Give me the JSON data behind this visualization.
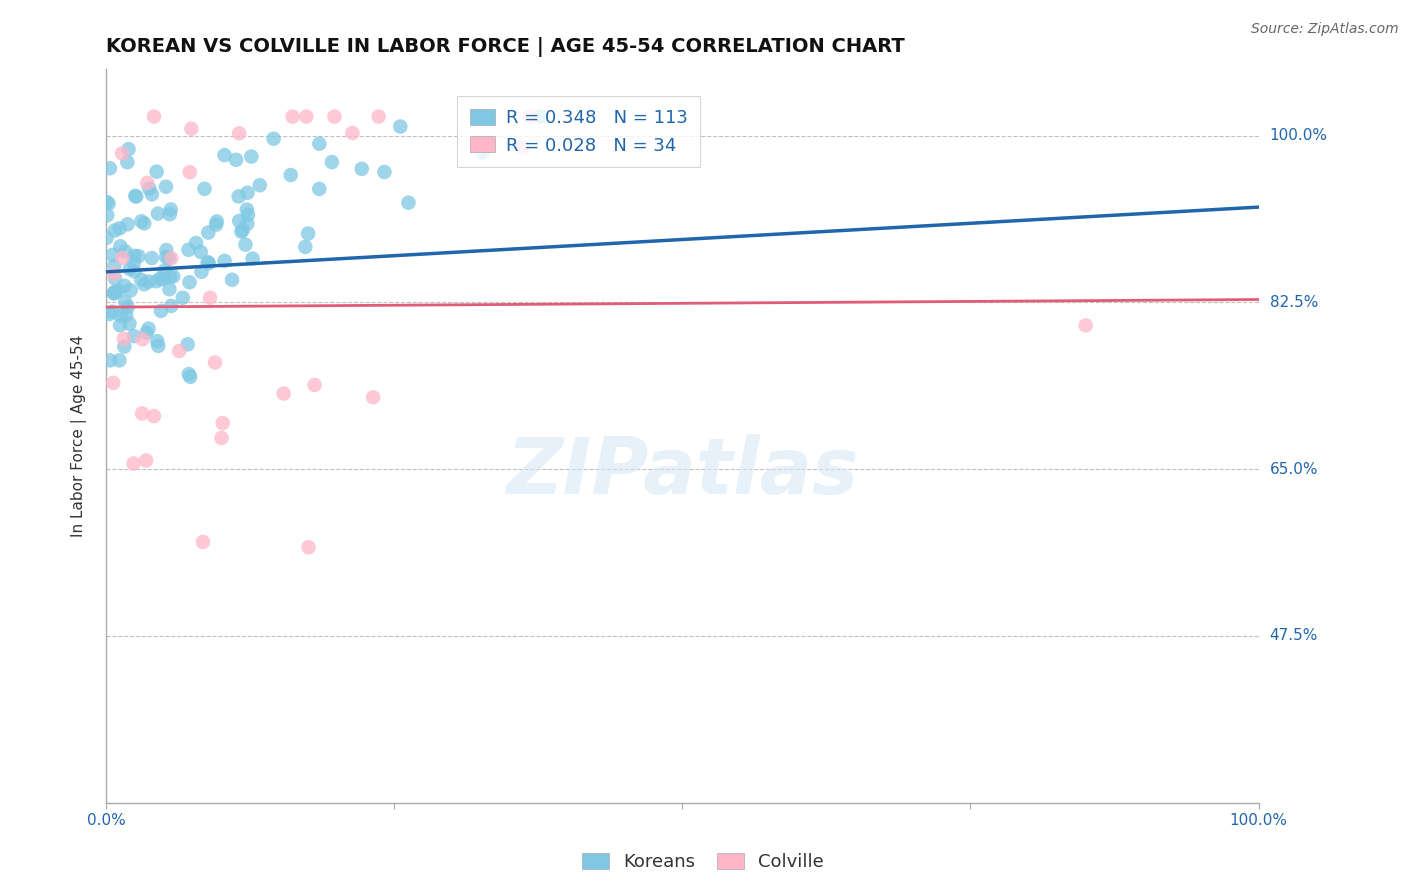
{
  "title": "KOREAN VS COLVILLE IN LABOR FORCE | AGE 45-54 CORRELATION CHART",
  "source": "Source: ZipAtlas.com",
  "ylabel": "In Labor Force | Age 45-54",
  "y_tick_labels": [
    "100.0%",
    "82.5%",
    "65.0%",
    "47.5%"
  ],
  "y_tick_values": [
    1.0,
    0.825,
    0.65,
    0.475
  ],
  "korean_R": 0.348,
  "korean_N": 113,
  "colville_R": 0.028,
  "colville_N": 34,
  "blue_color": "#7ec8e3",
  "pink_color": "#ffb6c8",
  "blue_line_color": "#2166ac",
  "pink_line_color": "#e05c78",
  "background_color": "#ffffff",
  "watermark": "ZIPatlas",
  "title_fontsize": 14,
  "axis_label_fontsize": 11,
  "tick_fontsize": 11,
  "legend_fontsize": 13,
  "source_fontsize": 10,
  "xlim": [
    0.0,
    1.0
  ],
  "ylim": [
    0.3,
    1.07
  ]
}
